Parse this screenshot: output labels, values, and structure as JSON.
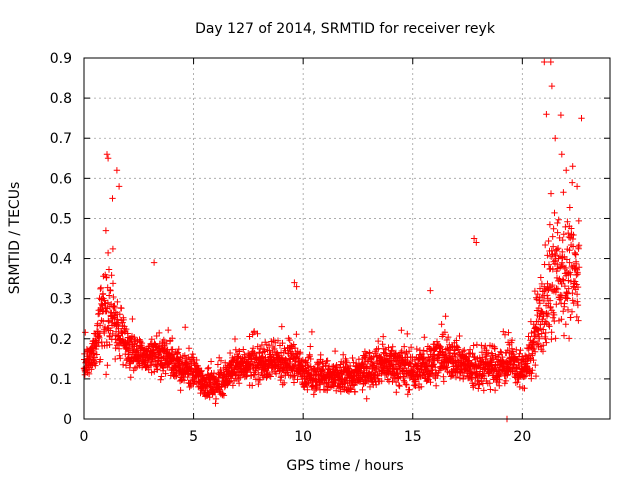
{
  "chart_data": {
    "type": "scatter",
    "title": "Day 127 of 2014, SRMTID for receiver reyk",
    "xlabel": "GPS time / hours",
    "ylabel": "SRMTID / TECUs",
    "xlim": [
      0,
      24
    ],
    "ylim": [
      0,
      0.9
    ],
    "xticks": [
      0,
      5,
      10,
      15,
      20
    ],
    "xtick_labels": [
      "0",
      "5",
      "10",
      "15",
      "20"
    ],
    "yticks": [
      0,
      0.1,
      0.2,
      0.3,
      0.4,
      0.5,
      0.6,
      0.7,
      0.8,
      0.9
    ],
    "ytick_labels": [
      "0",
      "0.1",
      "0.2",
      "0.3",
      "0.4",
      "0.5",
      "0.6",
      "0.7",
      "0.8",
      "0.9"
    ],
    "grid": true,
    "marker": "+",
    "color": "#ff0000",
    "series": [
      {
        "name": "SRMTID",
        "profile_x": [
          0,
          0.5,
          0.8,
          1.0,
          1.2,
          1.5,
          1.8,
          2.0,
          2.5,
          3.0,
          3.5,
          4.0,
          4.5,
          5.0,
          5.5,
          6.0,
          6.5,
          7.0,
          8.0,
          9.0,
          9.5,
          9.8,
          10.5,
          11.5,
          12.5,
          13.5,
          14.5,
          15.0,
          15.5,
          16.0,
          17.0,
          17.5,
          18.0,
          18.5,
          19.0,
          19.5,
          20.0,
          20.3,
          20.6,
          20.9,
          21.2,
          21.5,
          21.8,
          22.1,
          22.4,
          22.6
        ],
        "profile_center": [
          0.13,
          0.18,
          0.25,
          0.3,
          0.27,
          0.22,
          0.21,
          0.18,
          0.16,
          0.15,
          0.16,
          0.15,
          0.12,
          0.12,
          0.09,
          0.08,
          0.11,
          0.13,
          0.14,
          0.14,
          0.15,
          0.13,
          0.11,
          0.1,
          0.11,
          0.14,
          0.13,
          0.12,
          0.13,
          0.15,
          0.15,
          0.13,
          0.12,
          0.13,
          0.13,
          0.14,
          0.12,
          0.14,
          0.2,
          0.26,
          0.32,
          0.35,
          0.38,
          0.36,
          0.35,
          0.37
        ],
        "profile_spread": [
          0.04,
          0.06,
          0.12,
          0.17,
          0.12,
          0.08,
          0.07,
          0.06,
          0.05,
          0.05,
          0.06,
          0.05,
          0.05,
          0.05,
          0.04,
          0.04,
          0.05,
          0.05,
          0.05,
          0.05,
          0.06,
          0.05,
          0.05,
          0.05,
          0.05,
          0.06,
          0.06,
          0.06,
          0.06,
          0.06,
          0.06,
          0.06,
          0.06,
          0.06,
          0.06,
          0.05,
          0.05,
          0.06,
          0.1,
          0.14,
          0.17,
          0.18,
          0.18,
          0.17,
          0.14,
          0.1
        ],
        "points_per_hour": 120,
        "outliers": [
          [
            1.05,
            0.66
          ],
          [
            1.1,
            0.65
          ],
          [
            1.3,
            0.55
          ],
          [
            1.5,
            0.62
          ],
          [
            1.6,
            0.58
          ],
          [
            3.2,
            0.39
          ],
          [
            9.6,
            0.34
          ],
          [
            9.7,
            0.33
          ],
          [
            15.8,
            0.32
          ],
          [
            17.8,
            0.45
          ],
          [
            17.9,
            0.44
          ],
          [
            19.3,
            0.0
          ],
          [
            21.0,
            0.89
          ],
          [
            21.3,
            0.89
          ],
          [
            21.35,
            0.83
          ],
          [
            21.5,
            0.7
          ],
          [
            21.1,
            0.76
          ],
          [
            21.8,
            0.66
          ],
          [
            22.0,
            0.62
          ],
          [
            22.3,
            0.63
          ],
          [
            22.7,
            0.75
          ],
          [
            22.5,
            0.58
          ]
        ]
      }
    ]
  }
}
